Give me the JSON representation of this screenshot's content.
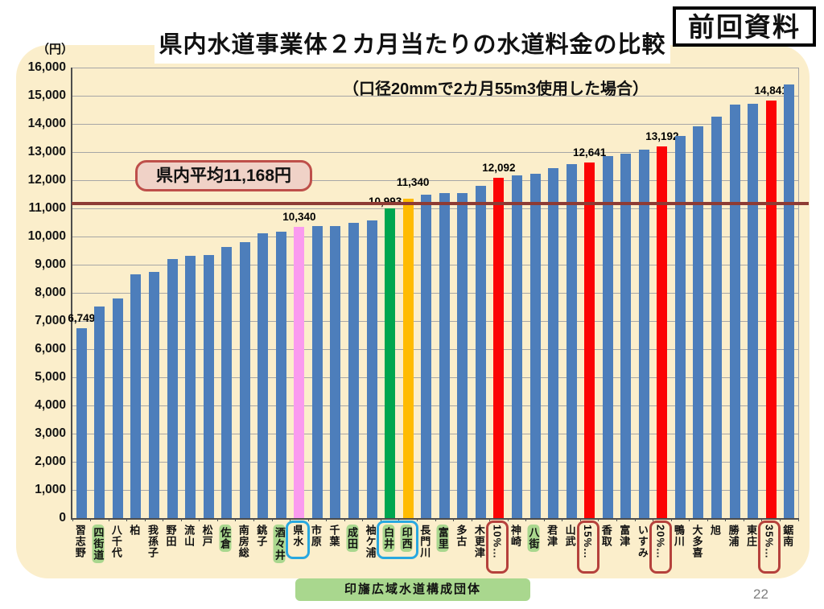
{
  "header": {
    "title": "県内水道事業体２カ月当たりの水道料金の比較",
    "badge": "前回資料",
    "subtitle": "（口径20mmで2カ月55m3使用した場合）"
  },
  "axes": {
    "unit": "（円）"
  },
  "average": {
    "label": "県内平均11,168円",
    "value": 11168
  },
  "footer": {
    "banner": "印旛広域水道構成団体",
    "page_number": "22"
  },
  "chart_data": {
    "type": "bar",
    "title": "県内水道事業体２カ月当たりの水道料金の比較",
    "subtitle": "（口径20mmで2カ月55m3使用した場合）",
    "ylabel": "（円）",
    "ylim": [
      0,
      16000
    ],
    "y_step": 1000,
    "y_tick_labels": [
      "0",
      "1,000",
      "2,000",
      "3,000",
      "4,000",
      "5,000",
      "6,000",
      "7,000",
      "8,000",
      "9,000",
      "10,000",
      "11,000",
      "12,000",
      "13,000",
      "14,000",
      "15,000",
      "16,000"
    ],
    "grid": true,
    "average_line": {
      "value": 11168,
      "label": "県内平均11,168円"
    },
    "colors": {
      "blue": "#4D7EBB",
      "pink": "#FA9BEF",
      "green": "#00A64F",
      "yellow": "#FFBB00",
      "red": "#FB0404",
      "average_line": "#8E3B34",
      "highlight": "#A9D78E",
      "blue_box": "#29A8E0",
      "red_box": "#B5413C"
    },
    "bars": [
      {
        "name": "習志野",
        "value": 6749,
        "color": "blue",
        "value_label": "6,749",
        "highlight": false
      },
      {
        "name": "四街道",
        "value": 7520,
        "color": "blue",
        "value_label": null,
        "highlight": true
      },
      {
        "name": "八千代",
        "value": 7790,
        "color": "blue",
        "value_label": null,
        "highlight": false
      },
      {
        "name": "柏",
        "value": 8650,
        "color": "blue",
        "value_label": null,
        "highlight": false
      },
      {
        "name": "我孫子",
        "value": 8750,
        "color": "blue",
        "value_label": null,
        "highlight": false
      },
      {
        "name": "野田",
        "value": 9190,
        "color": "blue",
        "value_label": null,
        "highlight": false
      },
      {
        "name": "流山",
        "value": 9320,
        "color": "blue",
        "value_label": null,
        "highlight": false
      },
      {
        "name": "松戸",
        "value": 9330,
        "color": "blue",
        "value_label": null,
        "highlight": false
      },
      {
        "name": "佐倉",
        "value": 9630,
        "color": "blue",
        "value_label": null,
        "highlight": true
      },
      {
        "name": "南房総",
        "value": 9810,
        "color": "blue",
        "value_label": null,
        "highlight": false
      },
      {
        "name": "銚子",
        "value": 10120,
        "color": "blue",
        "value_label": null,
        "highlight": false
      },
      {
        "name": "酒々井",
        "value": 10160,
        "color": "blue",
        "value_label": null,
        "highlight": true
      },
      {
        "name": "県水",
        "value": 10340,
        "color": "pink",
        "value_label": "10,340",
        "highlight": false
      },
      {
        "name": "市原",
        "value": 10380,
        "color": "blue",
        "value_label": null,
        "highlight": false
      },
      {
        "name": "千葉",
        "value": 10370,
        "color": "blue",
        "value_label": null,
        "highlight": false
      },
      {
        "name": "成田",
        "value": 10490,
        "color": "blue",
        "value_label": null,
        "highlight": true
      },
      {
        "name": "袖ケ浦",
        "value": 10560,
        "color": "blue",
        "value_label": null,
        "highlight": false
      },
      {
        "name": "白井",
        "value": 10993,
        "color": "green",
        "value_label": "10,993",
        "highlight": true
      },
      {
        "name": "印西",
        "value": 11340,
        "color": "yellow",
        "value_label": "11,340",
        "highlight": true
      },
      {
        "name": "長門川",
        "value": 11500,
        "color": "blue",
        "value_label": null,
        "highlight": false
      },
      {
        "name": "富里",
        "value": 11550,
        "color": "blue",
        "value_label": null,
        "highlight": true
      },
      {
        "name": "多古",
        "value": 11550,
        "color": "blue",
        "value_label": null,
        "highlight": false
      },
      {
        "name": "木更津",
        "value": 11790,
        "color": "blue",
        "value_label": null,
        "highlight": false
      },
      {
        "name": "10%…",
        "value": 12092,
        "color": "red",
        "value_label": "12,092",
        "highlight": false
      },
      {
        "name": "神崎",
        "value": 12160,
        "color": "blue",
        "value_label": null,
        "highlight": false
      },
      {
        "name": "八街",
        "value": 12240,
        "color": "blue",
        "value_label": null,
        "highlight": true
      },
      {
        "name": "君津",
        "value": 12440,
        "color": "blue",
        "value_label": null,
        "highlight": false
      },
      {
        "name": "山武",
        "value": 12570,
        "color": "blue",
        "value_label": null,
        "highlight": false
      },
      {
        "name": "15%…",
        "value": 12641,
        "color": "red",
        "value_label": "12,641",
        "highlight": false
      },
      {
        "name": "香取",
        "value": 12870,
        "color": "blue",
        "value_label": null,
        "highlight": false
      },
      {
        "name": "富津",
        "value": 12940,
        "color": "blue",
        "value_label": null,
        "highlight": false
      },
      {
        "name": "いすみ",
        "value": 13080,
        "color": "blue",
        "value_label": null,
        "highlight": false
      },
      {
        "name": "20%…",
        "value": 13192,
        "color": "red",
        "value_label": "13,192",
        "highlight": false
      },
      {
        "name": "鴨川",
        "value": 13560,
        "color": "blue",
        "value_label": null,
        "highlight": false
      },
      {
        "name": "大多喜",
        "value": 13910,
        "color": "blue",
        "value_label": null,
        "highlight": false
      },
      {
        "name": "旭",
        "value": 14250,
        "color": "blue",
        "value_label": null,
        "highlight": false
      },
      {
        "name": "勝浦",
        "value": 14680,
        "color": "blue",
        "value_label": null,
        "highlight": false
      },
      {
        "name": "東庄",
        "value": 14720,
        "color": "blue",
        "value_label": null,
        "highlight": false
      },
      {
        "name": "35%…",
        "value": 14841,
        "color": "red",
        "value_label": "14,841",
        "highlight": false
      },
      {
        "name": "鋸南",
        "value": 15400,
        "color": "blue",
        "value_label": null,
        "highlight": false
      }
    ],
    "label_boxes": [
      {
        "style": "blue",
        "from": 12,
        "to": 12
      },
      {
        "style": "blue",
        "from": 17,
        "to": 18
      },
      {
        "style": "red",
        "from": 23,
        "to": 23
      },
      {
        "style": "red",
        "from": 28,
        "to": 28
      },
      {
        "style": "red",
        "from": 32,
        "to": 32
      },
      {
        "style": "red",
        "from": 38,
        "to": 38
      }
    ]
  }
}
